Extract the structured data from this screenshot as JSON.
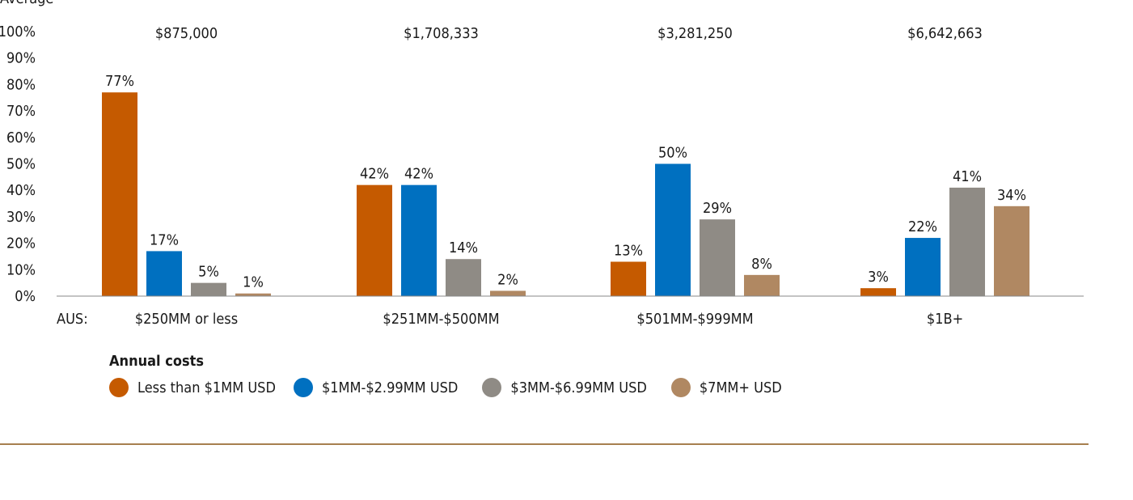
{
  "chart_data": {
    "type": "bar",
    "axis_corner_label": "Average",
    "x_axis_prefix": "AUS:",
    "categories": [
      "$250MM or less",
      "$251MM-$500MM",
      "$501MM-$999MM",
      "$1B+"
    ],
    "group_averages": [
      "$875,000",
      "$1,708,333",
      "$3,281,250",
      "$6,642,663"
    ],
    "ylim": [
      0,
      100
    ],
    "y_ticks": [
      "0%",
      "10%",
      "20%",
      "30%",
      "40%",
      "50%",
      "60%",
      "70%",
      "80%",
      "90%",
      "100%"
    ],
    "grid": false,
    "legend_title": "Annual costs",
    "legend_position": "bottom-left",
    "series": [
      {
        "name": "Less than $1MM USD",
        "color": "#c55a00",
        "values": [
          77,
          42,
          13,
          3
        ],
        "labels": [
          "77%",
          "42%",
          "13%",
          "3%"
        ]
      },
      {
        "name": "$1MM-$2.99MM USD",
        "color": "#0070c0",
        "values": [
          17,
          42,
          50,
          22
        ],
        "labels": [
          "17%",
          "42%",
          "50%",
          "22%"
        ]
      },
      {
        "name": "$3MM-$6.99MM USD",
        "color": "#8f8b85",
        "values": [
          5,
          14,
          29,
          41
        ],
        "labels": [
          "5%",
          "14%",
          "29%",
          "41%"
        ]
      },
      {
        "name": "$7MM+ USD",
        "color": "#b08862",
        "values": [
          1,
          2,
          8,
          34
        ],
        "labels": [
          "1%",
          "2%",
          "8%",
          "34%"
        ]
      }
    ]
  }
}
